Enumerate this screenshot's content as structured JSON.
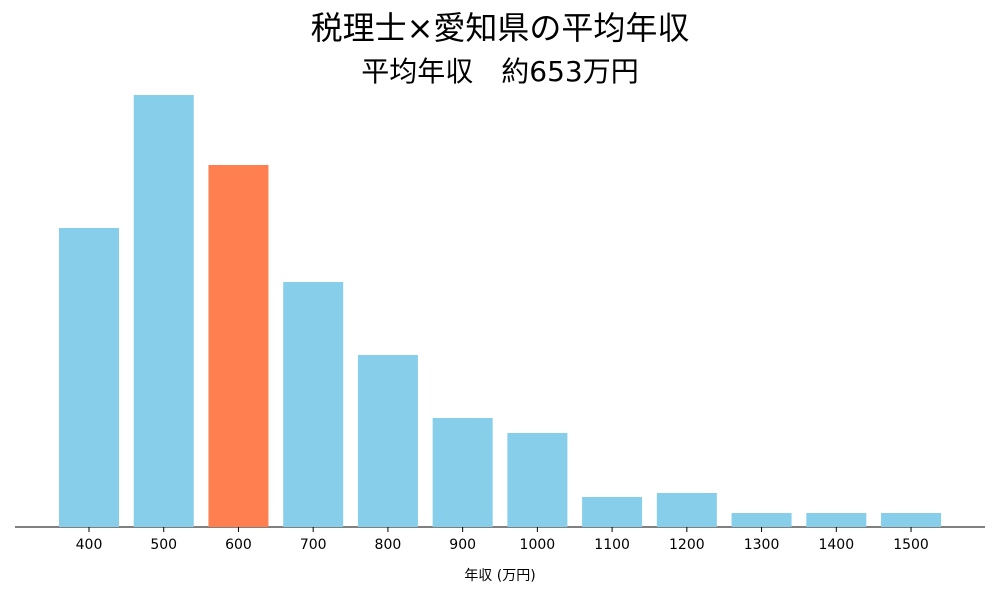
{
  "chart_data": {
    "type": "bar",
    "title": "税理士×愛知県の平均年収",
    "subtitle": "平均年収　約653万円",
    "x_label": "年収 (万円)",
    "categories": [
      "400",
      "500",
      "600",
      "700",
      "800",
      "900",
      "1000",
      "1100",
      "1200",
      "1300",
      "1400",
      "1500"
    ],
    "values": [
      299,
      432,
      362,
      245,
      172,
      109,
      94,
      30,
      34,
      14,
      14,
      14
    ],
    "colors": [
      "#87ceeb",
      "#87ceeb",
      "#ff7f50",
      "#87ceeb",
      "#87ceeb",
      "#87ceeb",
      "#87ceeb",
      "#87ceeb",
      "#87ceeb",
      "#87ceeb",
      "#87ceeb",
      "#87ceeb"
    ],
    "ylim": [
      0,
      453.6
    ]
  }
}
